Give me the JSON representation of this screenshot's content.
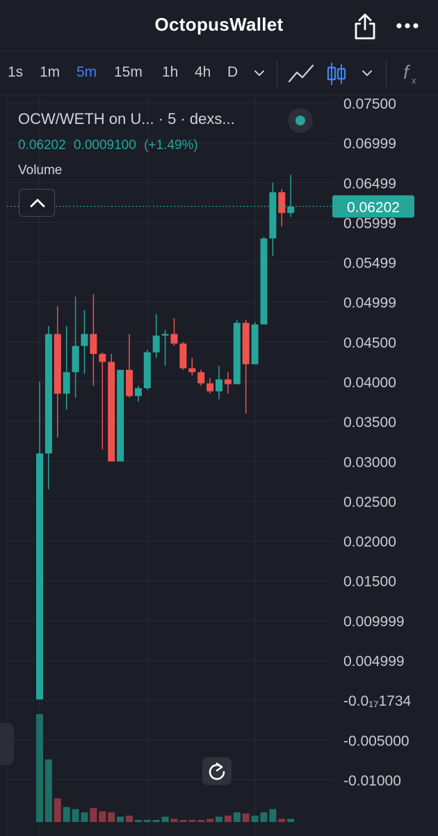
{
  "app": {
    "title": "OctopusWallet"
  },
  "header": {
    "share_icon": "share-icon",
    "more_icon": "more-icon"
  },
  "toolbar": {
    "timeframes": [
      "1s",
      "1m",
      "5m",
      "15m",
      "1h",
      "4h",
      "D"
    ],
    "active_timeframe": "5m",
    "icons": [
      "chevron-down-icon",
      "line-chart-icon",
      "candles-icon",
      "chevron-down-icon",
      "function-icon"
    ]
  },
  "legend": {
    "symbol": "OCW/WETH on U... · 5 · dexs...",
    "last": "0.06202",
    "change": "0.0009100",
    "change_pct": "(+1.49%)",
    "volume_label": "Volume",
    "status_color": "#26a69a"
  },
  "price_tag": "0.06202",
  "colors": {
    "up": "#26a69a",
    "down": "#ef5350",
    "background": "#1b1d27",
    "accent": "#3b82f6"
  },
  "chart_data": {
    "type": "candlestick",
    "title": "",
    "grid": true,
    "y_scale": "linear",
    "ylim": [
      -0.0125,
      0.075
    ],
    "y_tick_labels": [
      "0.07500",
      "0.06999",
      "0.06499",
      "0.05999",
      "0.05499",
      "0.04999",
      "0.04500",
      "0.04000",
      "0.03500",
      "0.03000",
      "0.02500",
      "0.02000",
      "0.01500",
      "0.009999",
      "0.004999",
      "-0.0₁₇1734",
      "-0.005000",
      "-0.01000"
    ],
    "y_tick_values": [
      0.075,
      0.07,
      0.065,
      0.06,
      0.055,
      0.05,
      0.045,
      0.04,
      0.035,
      0.03,
      0.025,
      0.02,
      0.015,
      0.01,
      0.005,
      0.0,
      -0.005,
      -0.01
    ],
    "candles": [
      {
        "o": 0.0001,
        "h": 0.04,
        "l": 0.0001,
        "c": 0.031
      },
      {
        "o": 0.031,
        "h": 0.047,
        "l": 0.0265,
        "c": 0.046
      },
      {
        "o": 0.046,
        "h": 0.0495,
        "l": 0.033,
        "c": 0.0385
      },
      {
        "o": 0.0385,
        "h": 0.047,
        "l": 0.0365,
        "c": 0.0412
      },
      {
        "o": 0.0412,
        "h": 0.0507,
        "l": 0.038,
        "c": 0.0445
      },
      {
        "o": 0.0445,
        "h": 0.049,
        "l": 0.041,
        "c": 0.046
      },
      {
        "o": 0.046,
        "h": 0.051,
        "l": 0.0395,
        "c": 0.0435
      },
      {
        "o": 0.0435,
        "h": 0.0437,
        "l": 0.0315,
        "c": 0.0425
      },
      {
        "o": 0.0425,
        "h": 0.0435,
        "l": 0.03,
        "c": 0.03
      },
      {
        "o": 0.03,
        "h": 0.0415,
        "l": 0.03,
        "c": 0.0415
      },
      {
        "o": 0.0415,
        "h": 0.046,
        "l": 0.038,
        "c": 0.0382
      },
      {
        "o": 0.0382,
        "h": 0.0395,
        "l": 0.0375,
        "c": 0.0392
      },
      {
        "o": 0.0392,
        "h": 0.044,
        "l": 0.039,
        "c": 0.0437
      },
      {
        "o": 0.0437,
        "h": 0.0485,
        "l": 0.043,
        "c": 0.0458
      },
      {
        "o": 0.0458,
        "h": 0.0465,
        "l": 0.042,
        "c": 0.046
      },
      {
        "o": 0.046,
        "h": 0.048,
        "l": 0.0445,
        "c": 0.0448
      },
      {
        "o": 0.0448,
        "h": 0.045,
        "l": 0.0415,
        "c": 0.0417
      },
      {
        "o": 0.0417,
        "h": 0.043,
        "l": 0.0408,
        "c": 0.0412
      },
      {
        "o": 0.0412,
        "h": 0.0415,
        "l": 0.0395,
        "c": 0.0398
      },
      {
        "o": 0.0398,
        "h": 0.0405,
        "l": 0.0385,
        "c": 0.0388
      },
      {
        "o": 0.0388,
        "h": 0.042,
        "l": 0.0378,
        "c": 0.0403
      },
      {
        "o": 0.0403,
        "h": 0.0412,
        "l": 0.0385,
        "c": 0.0397
      },
      {
        "o": 0.0397,
        "h": 0.0478,
        "l": 0.0397,
        "c": 0.0474
      },
      {
        "o": 0.0474,
        "h": 0.0478,
        "l": 0.036,
        "c": 0.0422
      },
      {
        "o": 0.0422,
        "h": 0.0475,
        "l": 0.0422,
        "c": 0.0472
      },
      {
        "o": 0.0472,
        "h": 0.0582,
        "l": 0.0472,
        "c": 0.058
      },
      {
        "o": 0.058,
        "h": 0.065,
        "l": 0.0558,
        "c": 0.0638
      },
      {
        "o": 0.0638,
        "h": 0.0642,
        "l": 0.0595,
        "c": 0.0612
      },
      {
        "o": 0.0612,
        "h": 0.066,
        "l": 0.0607,
        "c": 0.062
      }
    ],
    "volume_relative": [
      1.0,
      0.58,
      0.22,
      0.14,
      0.12,
      0.09,
      0.13,
      0.1,
      0.09,
      0.05,
      0.06,
      0.02,
      0.02,
      0.02,
      0.05,
      0.03,
      0.02,
      0.02,
      0.02,
      0.03,
      0.05,
      0.06,
      0.09,
      0.08,
      0.06,
      0.09,
      0.12,
      0.03,
      0.03
    ]
  }
}
